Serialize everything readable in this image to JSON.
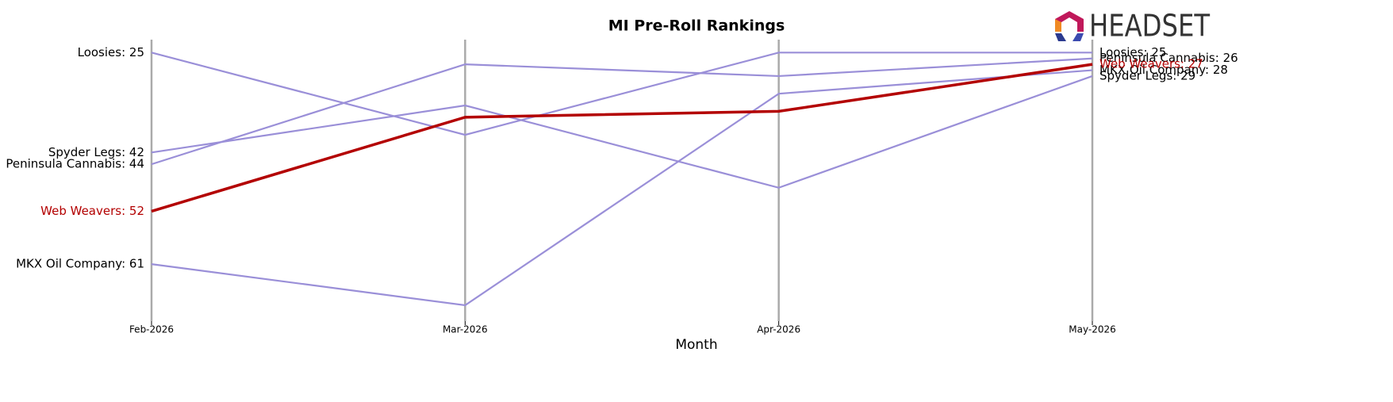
{
  "chart_data": {
    "type": "line",
    "title": "MI Pre-Roll Rankings",
    "x_label": "Month",
    "logo_text": "HEADSET",
    "categories": [
      "Feb-2026",
      "Mar-2026",
      "Apr-2026",
      "May-2026"
    ],
    "ylim": [
      22.8,
      70.7
    ],
    "y_inverted": true,
    "series": [
      {
        "name": "Loosies",
        "color": "#9a8fd8",
        "values": [
          25,
          39,
          25,
          25
        ],
        "value_labels": [
          "Loosies: 25",
          null,
          null,
          "Loosies: 25"
        ]
      },
      {
        "name": "Spyder Legs",
        "color": "#9a8fd8",
        "values": [
          42,
          34,
          48,
          29
        ],
        "value_labels": [
          "Spyder Legs: 42",
          null,
          null,
          "Spyder Legs: 29"
        ]
      },
      {
        "name": "Peninsula Cannabis",
        "color": "#9a8fd8",
        "values": [
          44,
          27,
          29,
          26
        ],
        "value_labels": [
          "Peninsula Cannabis: 44",
          null,
          null,
          "Peninsula Cannabis: 26"
        ]
      },
      {
        "name": "MKX Oil Company",
        "color": "#9a8fd8",
        "values": [
          61,
          68,
          32,
          28
        ],
        "value_labels": [
          "MKX Oil Company: 61",
          null,
          null,
          "MKX Oil Company: 28"
        ]
      },
      {
        "name": "Web Weavers",
        "color": "#b30000",
        "values": [
          52,
          36,
          35,
          27
        ],
        "value_labels": [
          "Web Weavers: 52",
          null,
          null,
          "Web Weavers: 27"
        ]
      }
    ]
  }
}
